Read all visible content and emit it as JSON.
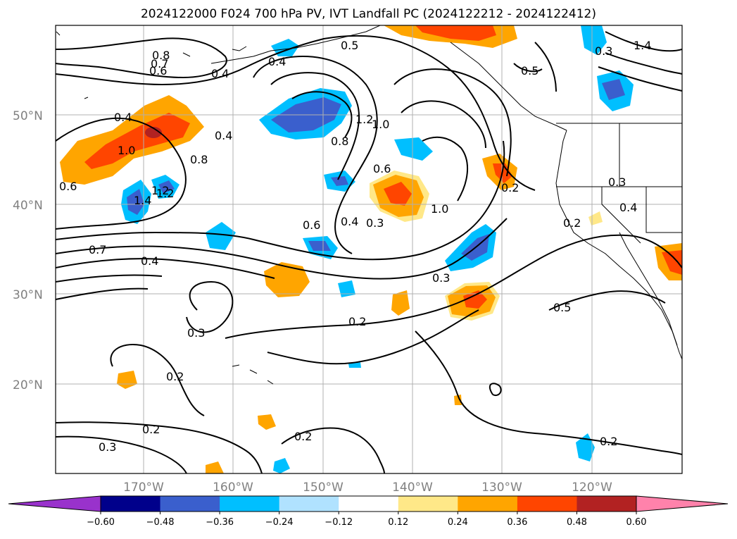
{
  "title": "2024122000 F024 700 hPa PV, IVT Landfall PC (2024122212 - 2024122412)",
  "lat_labels": [
    "50°N",
    "40°N",
    "30°N",
    "20°N"
  ],
  "lon_labels": [
    "170°W",
    "160°W",
    "150°W",
    "140°W",
    "130°W",
    "120°W"
  ],
  "colorbar": {
    "ticks": [
      "−0.60",
      "−0.48",
      "−0.36",
      "−0.24",
      "−0.12",
      "0.12",
      "0.24",
      "0.36",
      "0.48",
      "0.60"
    ],
    "colors": [
      "#9932CC",
      "#00008B",
      "#3A5FCD",
      "#00BFFF",
      "#B0E2FF",
      "#FFFFFF",
      "#FFE888",
      "#FFA500",
      "#FF4500",
      "#B22222",
      "#FF82AB"
    ]
  },
  "contour_labels": [
    "0.8",
    "0.7",
    "0.6",
    "0.4",
    "0.5",
    "0.4",
    "0.3",
    "1.4",
    "1.2",
    "1.0",
    "0.8",
    "0.4",
    "0.4",
    "1.0",
    "0.8",
    "0.6",
    "1.2",
    "1.4",
    "1.2",
    "0.6",
    "0.7",
    "0.4",
    "0.6",
    "0.4",
    "0.3",
    "1.0",
    "0.5",
    "0.3",
    "0.2",
    "0.3",
    "0.2",
    "0.4",
    "0.3",
    "0.2",
    "0.2",
    "0.2",
    "0.3",
    "0.2",
    "0.2",
    "0.5"
  ]
}
